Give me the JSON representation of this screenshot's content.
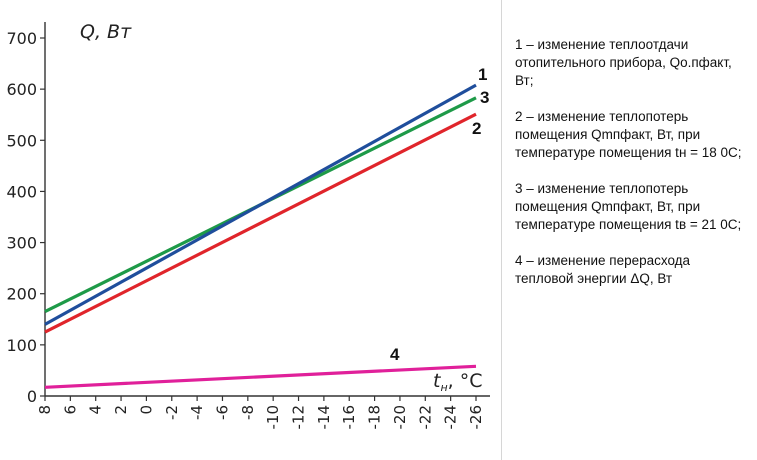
{
  "chart_data": {
    "type": "line",
    "ylabel": "Q, Вт",
    "xlabel_main": "t",
    "xlabel_sub": "н",
    "xlabel_unit": ", °C",
    "x_ticks": [
      8,
      6,
      4,
      2,
      0,
      -2,
      -4,
      -6,
      -8,
      -10,
      -12,
      -14,
      -16,
      -18,
      -20,
      -22,
      -24,
      -26
    ],
    "y_ticks": [
      0,
      100,
      200,
      300,
      400,
      500,
      600,
      700
    ],
    "xlim": [
      8,
      -26
    ],
    "ylim": [
      0,
      700
    ],
    "grid": false,
    "series": [
      {
        "name": "1",
        "color": "#1f4e9c",
        "x": [
          8,
          -26
        ],
        "y": [
          140,
          608
        ]
      },
      {
        "name": "2",
        "color": "#e0252b",
        "x": [
          8,
          -26
        ],
        "y": [
          125,
          551
        ]
      },
      {
        "name": "3",
        "color": "#1e9a48",
        "x": [
          8,
          -26
        ],
        "y": [
          165,
          583
        ]
      },
      {
        "name": "4",
        "color": "#e0209a",
        "x": [
          8,
          -26
        ],
        "y": [
          17,
          58
        ]
      }
    ]
  },
  "legend": [
    "1 – изменение теплоотдачи отопительного прибора, Qо.пфакт, Вт;",
    "2 – изменение теплопотерь помещения Qmпфакт, Вт, при температуре помещения tн = 18 0С;",
    "3 – изменение теплопотерь помещения Qmпфакт, Вт, при температуре помещения tв = 21 0С;",
    "4 – изменение перерасхода тепловой энергии ΔQ, Вт"
  ]
}
